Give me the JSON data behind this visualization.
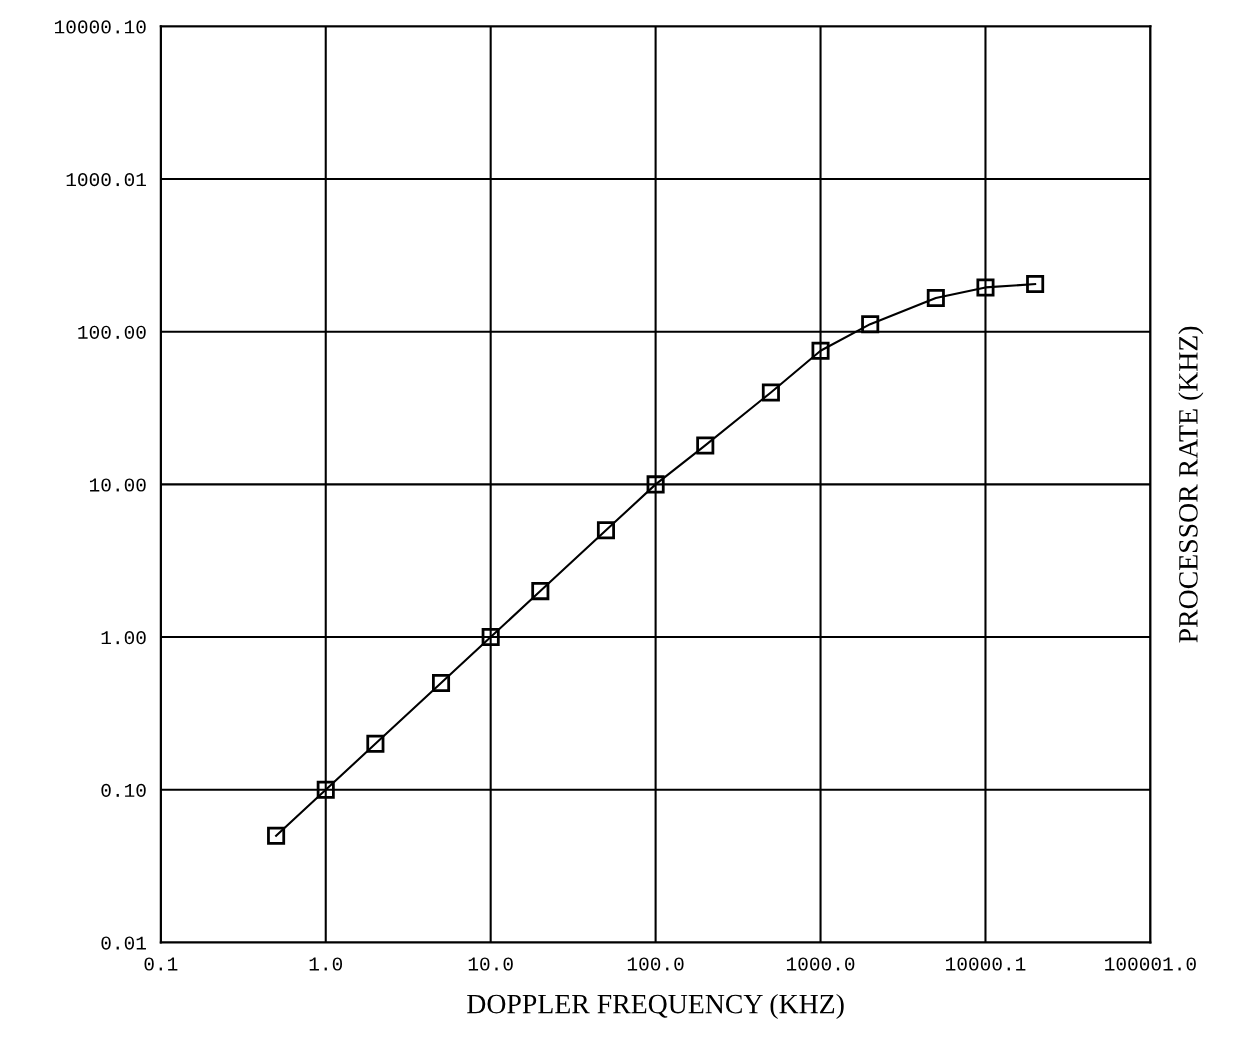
{
  "chart_data": {
    "type": "line",
    "xlabel": "DOPPLER FREQUENCY (KHZ)",
    "ylabel": "PROCESSOR RATE (KHZ)",
    "log": "xy",
    "x": [
      0.5,
      1,
      2,
      5,
      10,
      20,
      50,
      100,
      200,
      500,
      1000,
      2000,
      5000,
      10000,
      20000
    ],
    "series": [
      {
        "color": "#000000",
        "values": [
          0.05,
          0.1,
          0.2,
          0.5,
          1.0,
          2,
          5,
          10,
          18,
          40,
          75,
          112,
          166,
          195,
          205
        ]
      }
    ],
    "xlim": [
      0.1,
      100001
    ],
    "ylim": [
      0.01,
      10000.1
    ],
    "xticks": [
      {
        "value": 0.1,
        "label": "0.1"
      },
      {
        "value": 1,
        "label": "1.0"
      },
      {
        "value": 10,
        "label": "10.0"
      },
      {
        "value": 100,
        "label": "100.0"
      },
      {
        "value": 1000,
        "label": "1000.0"
      },
      {
        "value": 10000.1,
        "label": "10000.1"
      },
      {
        "value": 100001,
        "label": "100001.0"
      }
    ],
    "yticks": [
      {
        "value": 0.01,
        "label": "0.01"
      },
      {
        "value": 0.1,
        "label": "0.10"
      },
      {
        "value": 1,
        "label": "1.00"
      },
      {
        "value": 10,
        "label": "10.00"
      },
      {
        "value": 100,
        "label": "100.00"
      },
      {
        "value": 1000.01,
        "label": "1000.01"
      },
      {
        "value": 10000.1,
        "label": "10000.10"
      }
    ],
    "grid": true,
    "marker": "square",
    "line_style": "solid",
    "legend": false
  }
}
